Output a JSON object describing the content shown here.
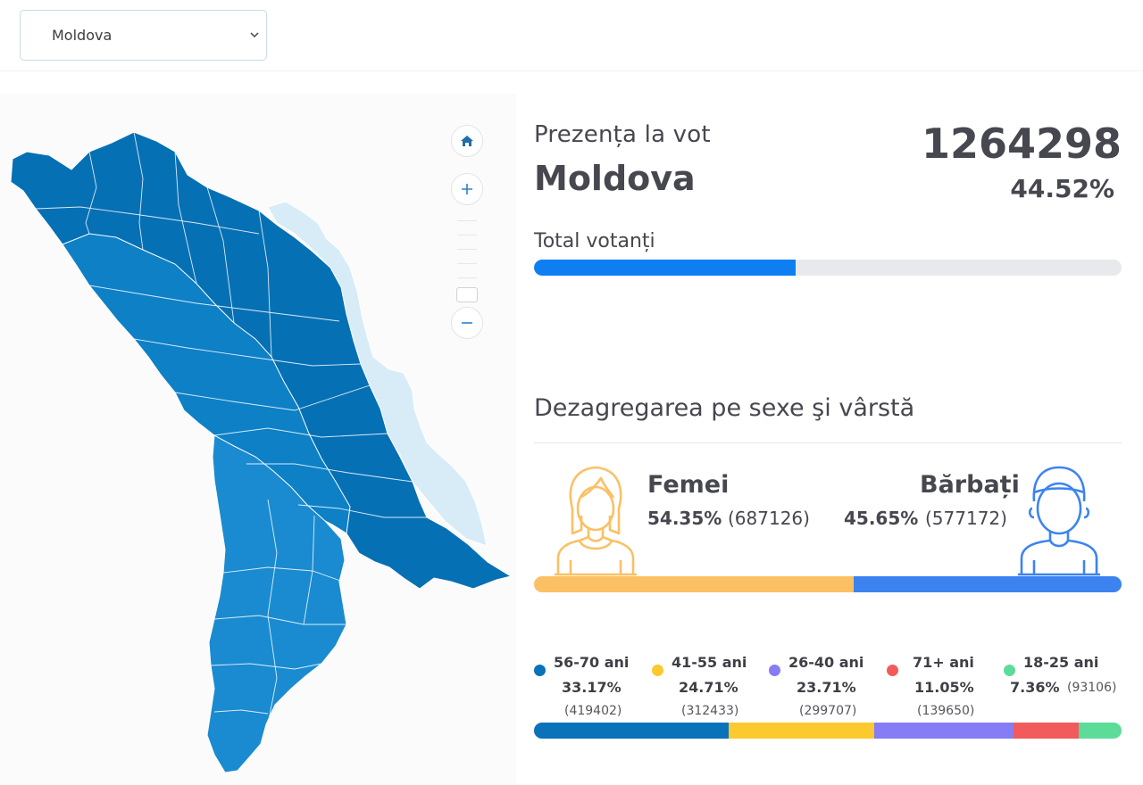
{
  "region_select": {
    "value": "Moldova"
  },
  "colors": {
    "map_dark": "#0670b4",
    "map_mid": "#0d80c6",
    "map_light": "#1a8bd0",
    "map_transnistria": "#d8ecf8",
    "total_bar": "#0d7ff2",
    "female": "#fbc064",
    "male": "#3d83f0",
    "age_56_70": "#0a72b8",
    "age_41_55": "#fcc92e",
    "age_26_40": "#867cf5",
    "age_71_plus": "#f25b5b",
    "age_18_25": "#5cdc98"
  },
  "map_controls": {
    "home_icon": "home-icon",
    "zoom_in_icon": "plus-icon",
    "zoom_out_icon": "minus-icon"
  },
  "turnout": {
    "subtitle": "Prezența la vot",
    "title": "Moldova",
    "total_voters": "1264298",
    "percent_text": "44.52%",
    "percent_value": 44.52,
    "bar_label": "Total votanți"
  },
  "breakdown": {
    "title": "Dezagregarea pe sexe şi vârstă",
    "female": {
      "label": "Femei",
      "percent": "54.35%",
      "count": "(687126)",
      "value": 54.35,
      "icon": "female-avatar-icon"
    },
    "male": {
      "label": "Bărbați",
      "percent": "45.65%",
      "count": "(577172)",
      "value": 45.65,
      "icon": "male-avatar-icon"
    },
    "ages": [
      {
        "label": "56-70 ani",
        "percent": "33.17%",
        "count": "(419402)",
        "value": 33.17,
        "color": "#0a72b8"
      },
      {
        "label": "41-55 ani",
        "percent": "24.71%",
        "count": "(312433)",
        "value": 24.71,
        "color": "#fcc92e"
      },
      {
        "label": "26-40 ani",
        "percent": "23.71%",
        "count": "(299707)",
        "value": 23.71,
        "color": "#867cf5"
      },
      {
        "label": "71+ ani",
        "percent": "11.05%",
        "count": "(139650)",
        "value": 11.05,
        "color": "#f25b5b"
      },
      {
        "label": "18-25 ani",
        "percent": "7.36%",
        "count": "(93106)",
        "value": 7.36,
        "color": "#5cdc98"
      }
    ]
  }
}
